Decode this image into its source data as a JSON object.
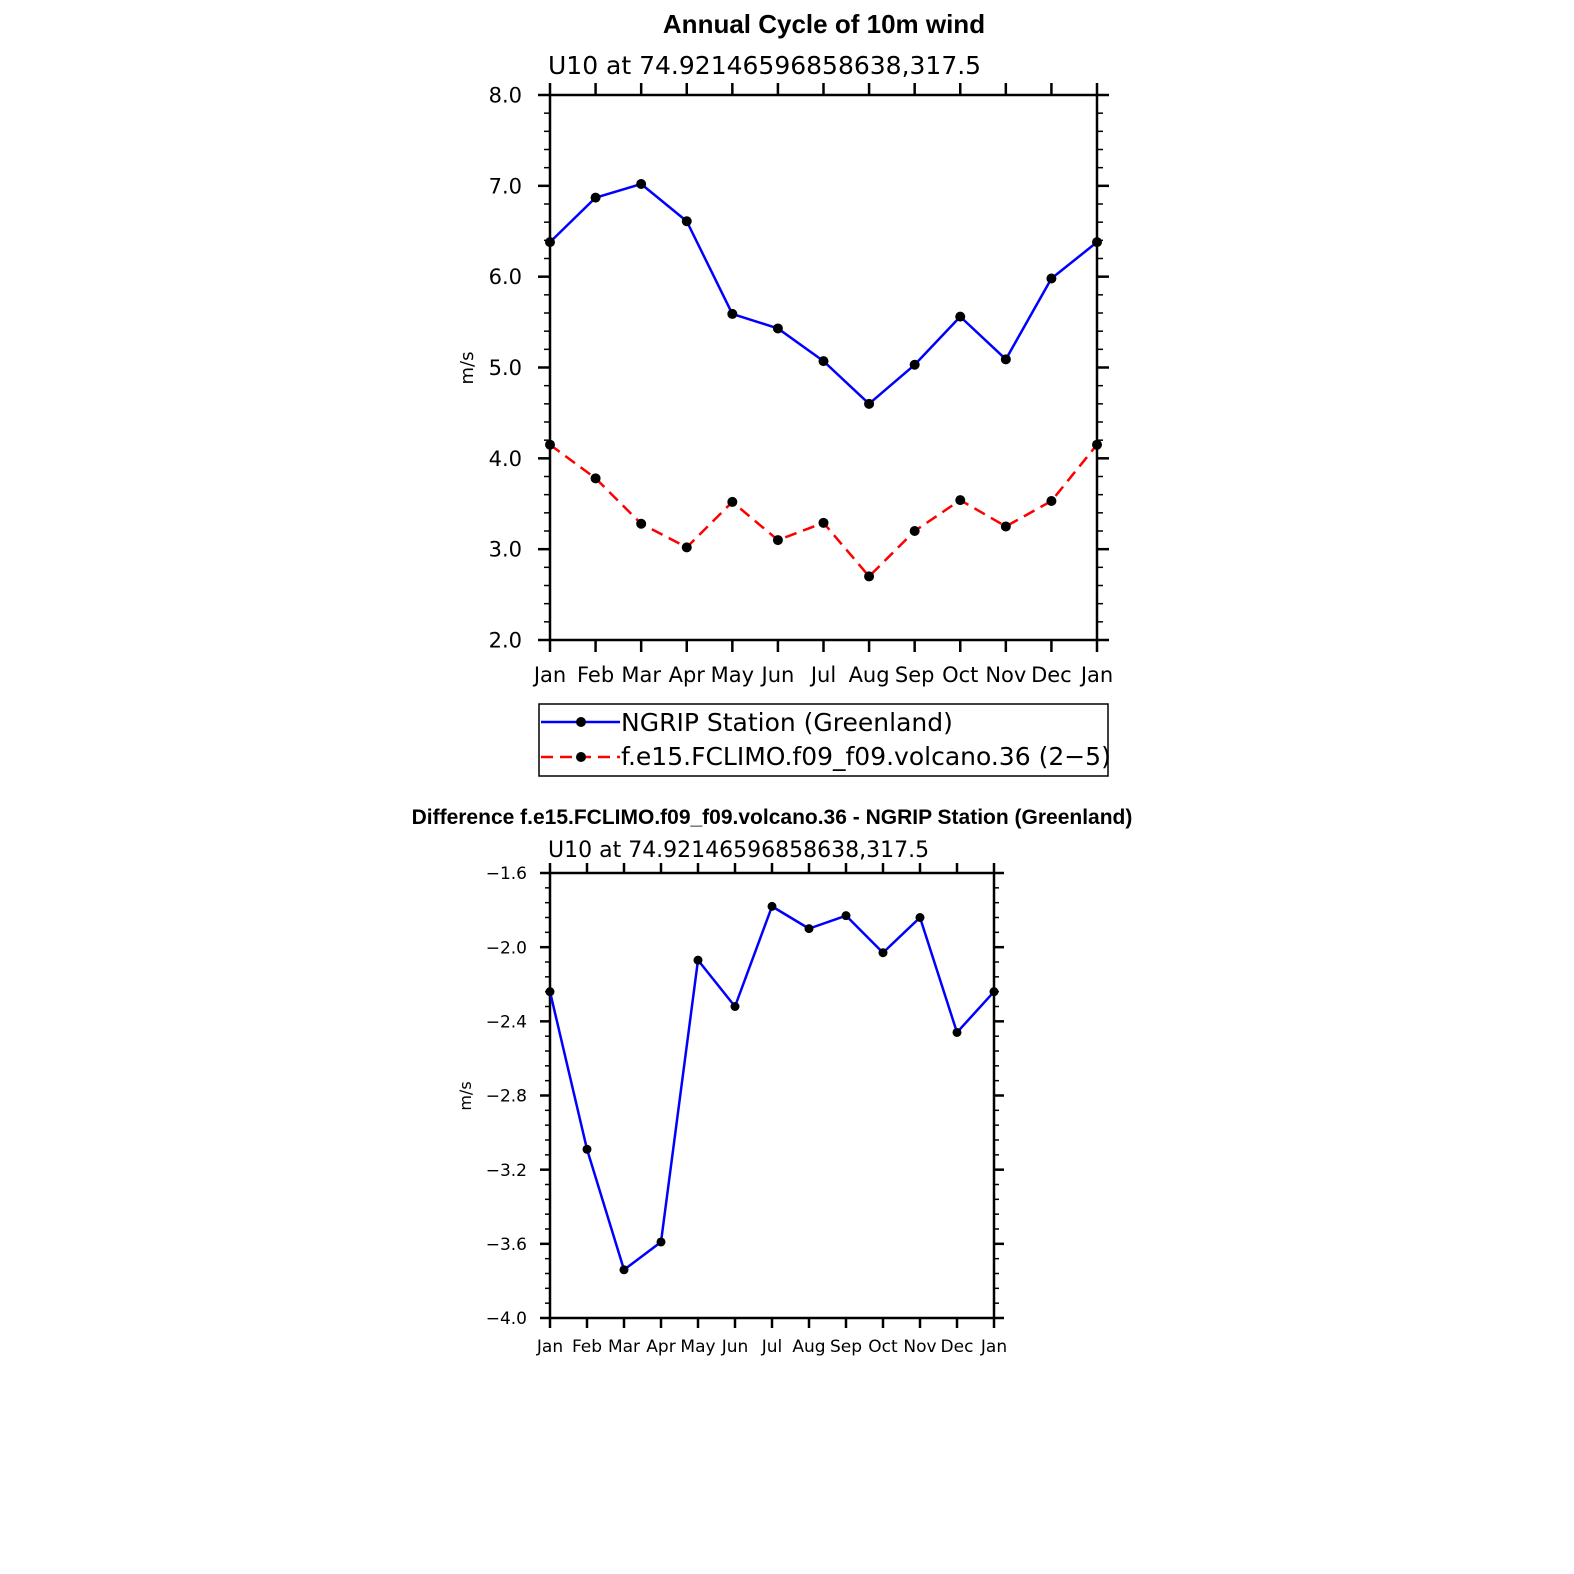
{
  "chart_data": [
    {
      "type": "line",
      "title": "Annual Cycle of 10m wind",
      "subtitle": "U10 at 74.92146596858638,317.5",
      "ylabel": "m/s",
      "xlabel": "",
      "categories": [
        "Jan",
        "Feb",
        "Mar",
        "Apr",
        "May",
        "Jun",
        "Jul",
        "Aug",
        "Sep",
        "Oct",
        "Nov",
        "Dec",
        "Jan"
      ],
      "ylim": [
        2.0,
        8.0
      ],
      "yticks": [
        "2.0",
        "3.0",
        "4.0",
        "5.0",
        "6.0",
        "7.0",
        "8.0"
      ],
      "series": [
        {
          "name": "NGRIP Station (Greenland)",
          "color": "#0000ff",
          "dash": "solid",
          "values": [
            6.38,
            6.87,
            7.02,
            6.61,
            5.59,
            5.43,
            5.07,
            4.6,
            5.03,
            5.56,
            5.09,
            5.98,
            6.38
          ]
        },
        {
          "name": "f.e15.FCLIMO.f09_f09.volcano.36 (2−5)",
          "color": "#ff0000",
          "dash": "dashed",
          "values": [
            4.15,
            3.78,
            3.28,
            3.02,
            3.52,
            3.1,
            3.29,
            2.7,
            3.2,
            3.54,
            3.25,
            3.53,
            4.15
          ]
        }
      ],
      "legend": "below"
    },
    {
      "type": "line",
      "title": "Difference f.e15.FCLIMO.f09_f09.volcano.36 - NGRIP Station (Greenland)",
      "subtitle": "U10 at 74.92146596858638,317.5",
      "ylabel": "m/s",
      "xlabel": "",
      "categories": [
        "Jan",
        "Feb",
        "Mar",
        "Apr",
        "May",
        "Jun",
        "Jul",
        "Aug",
        "Sep",
        "Oct",
        "Nov",
        "Dec",
        "Jan"
      ],
      "ylim": [
        -4.0,
        -1.6
      ],
      "yticks": [
        "−4.0",
        "−3.6",
        "−3.2",
        "−2.8",
        "−2.4",
        "−2.0",
        "−1.6"
      ],
      "series": [
        {
          "name": "Difference",
          "color": "#0000ff",
          "dash": "solid",
          "values": [
            -2.24,
            -3.09,
            -3.74,
            -3.59,
            -2.07,
            -2.32,
            -1.78,
            -1.9,
            -1.83,
            -2.03,
            -1.84,
            -2.46,
            -2.24
          ]
        }
      ]
    }
  ]
}
